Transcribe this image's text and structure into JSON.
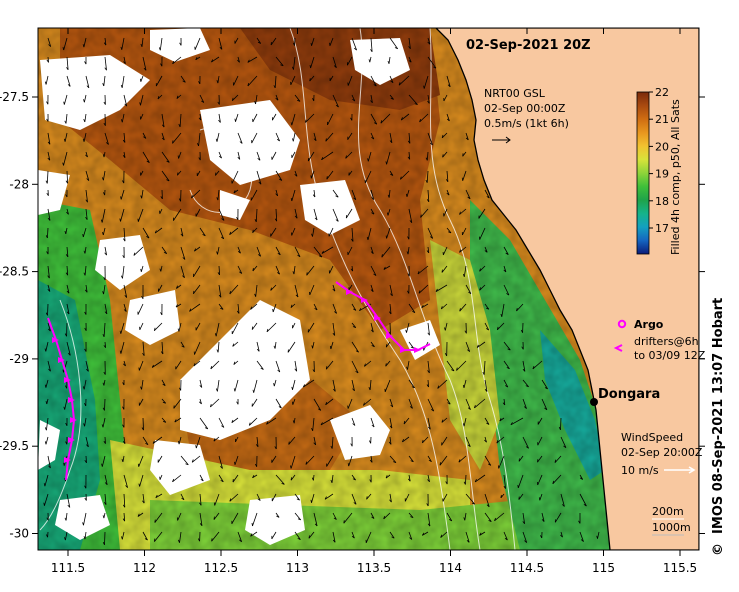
{
  "map": {
    "title": "02-Sep-2021 20Z",
    "credit": "IMOS 08-Sep-2021 13:07 Hobart",
    "copyright_symbol": "©",
    "x_ticks": [
      "111.5",
      "112",
      "112.5",
      "113",
      "113.5",
      "114",
      "114.5",
      "115",
      "115.5"
    ],
    "y_ticks": [
      "-27.5",
      "-28",
      "-28.5",
      "-29",
      "-29.5",
      "-30"
    ],
    "place": "Dongara",
    "colorbar": {
      "label": "Filled 4h comp, p50, All Sats",
      "ticks": [
        "22",
        "21",
        "20",
        "19",
        "18",
        "17"
      ],
      "colors": [
        "#0b1c7a",
        "#1565c0",
        "#13a0c0",
        "#16b38a",
        "#1fa34a",
        "#3fbf3a",
        "#8fd43a",
        "#d8e23a",
        "#f2c230",
        "#e8961e",
        "#cf6d12",
        "#a94a10",
        "#7a2a0a"
      ]
    },
    "current_legend": {
      "line1": "NRT00 GSL",
      "line2": "02-Sep 00:00Z",
      "line3": "0.5m/s (1kt 6h)"
    },
    "argo_label": "Argo",
    "drifter_line1": "drifters@6h",
    "drifter_line2": "to 03/09 12Z",
    "wind_line1": "WindSpeed",
    "wind_line2": "02-Sep 20:00Z",
    "wind_line3": "10 m/s",
    "contour_line1": "200m",
    "contour_line2": "1000m",
    "colors": {
      "land": "#f8c8a0",
      "coast": "#000000",
      "drifter": "#ff00ff",
      "wind_arrow": "#ffffff"
    }
  }
}
